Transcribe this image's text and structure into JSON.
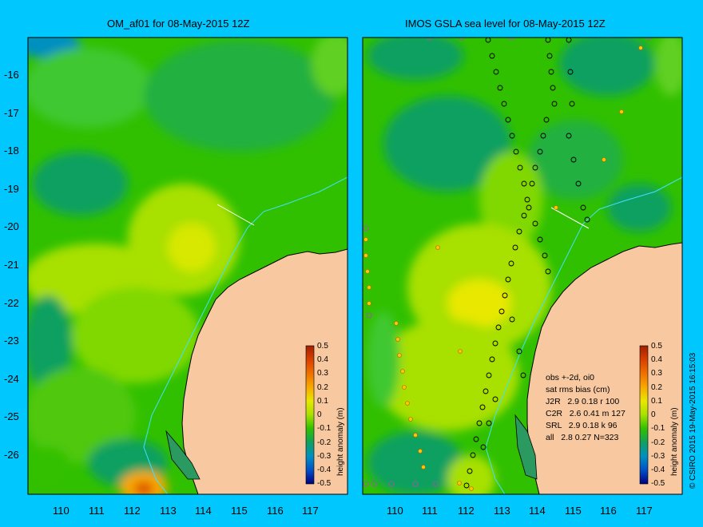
{
  "left_panel": {
    "title": "OM_af01 for 08-May-2015 12Z"
  },
  "right_panel": {
    "title": "IMOS GSLA sea level  for 08-May-2015 12Z"
  },
  "y_axis": {
    "ticks": [
      "-16",
      "-17",
      "-18",
      "-19",
      "-20",
      "-21",
      "-22",
      "-23",
      "-24",
      "-25",
      "-26"
    ]
  },
  "x_axis": {
    "ticks": [
      "110",
      "111",
      "112",
      "113",
      "114",
      "115",
      "116",
      "117"
    ]
  },
  "colorbar": {
    "title": "height anomaly (m)",
    "ticks": [
      "0.5",
      "0.4",
      "0.3",
      "0.2",
      "0.1",
      "0",
      "-0.1",
      "-0.2",
      "-0.3",
      "-0.4",
      "-0.5"
    ],
    "colors": [
      "#a02000",
      "#d84000",
      "#f07000",
      "#f8a800",
      "#e8e800",
      "#a8e000",
      "#30c000",
      "#10a060",
      "#0090c0",
      "#0050c8",
      "#000080"
    ]
  },
  "stats": {
    "line1": "obs +-2d, oi0",
    "line2": "sat rms bias (cm)",
    "line3": "J2R   2.9 0.18 r 100",
    "line4": "C2R   2.6 0.41 m 127",
    "line5": "SRL   2.9 0.18 k 96",
    "line6": "all   2.8 0.27 N=323"
  },
  "credit": "© CSIRO 2015  19-May-2015 16:15:03",
  "colors": {
    "background": "#00c8ff",
    "land": "#f8c8a0",
    "coastline": "#000000"
  }
}
